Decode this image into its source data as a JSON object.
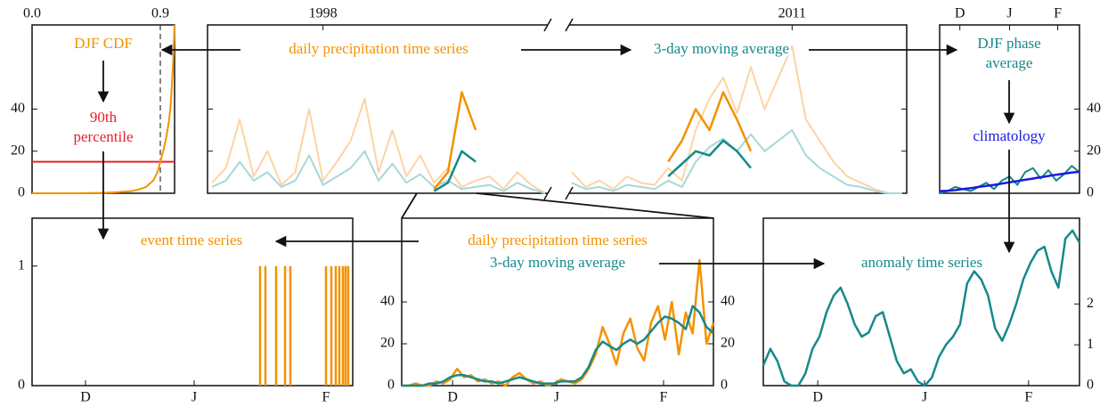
{
  "chart_data": [
    {
      "type": "line",
      "xaxis": "top",
      "yaxis": [
        "left"
      ],
      "xlim": [
        0,
        1
      ],
      "xticks": [
        {
          "value": 0,
          "label": "0.0"
        },
        0.9
      ],
      "ylim": [
        0,
        80
      ],
      "yticks": [
        0,
        20,
        40
      ],
      "x": [
        0,
        0.3,
        0.5,
        0.6,
        0.7,
        0.75,
        0.8,
        0.85,
        0.88,
        0.9,
        0.92,
        0.94,
        0.96,
        0.97,
        0.98,
        0.99,
        1.0
      ],
      "series": [
        {
          "color": "#f39200",
          "width": 2,
          "values": [
            0,
            0,
            0.2,
            0.5,
            1,
            1.8,
            3,
            6,
            10,
            15,
            20,
            26,
            34,
            40,
            50,
            62,
            80
          ]
        }
      ],
      "threshold": {
        "value": 15,
        "color": "#e8202a"
      },
      "reference_x": 0.9,
      "annotations": [
        {
          "lines": [
            "DJF CDF"
          ],
          "color": "#f39200"
        },
        {
          "lines": [
            "90th",
            "percentile"
          ],
          "color": "#e8202a"
        }
      ]
    },
    {
      "type": "line",
      "xaxis": "top",
      "yaxis": [
        "left",
        "right"
      ],
      "ytick_labels": false,
      "xlim": [
        0,
        98
      ],
      "axis_break": [
        48,
        50
      ],
      "xticks": [
        {
          "value": 16,
          "label": "1998"
        },
        {
          "value": 82,
          "label": "2011"
        }
      ],
      "ylim": [
        0,
        80
      ],
      "yticks": [
        0,
        20,
        40
      ],
      "x": [
        0,
        2,
        4,
        6,
        8,
        10,
        12,
        14,
        16,
        18,
        20,
        22,
        24,
        26,
        28,
        30,
        32,
        34,
        36,
        38,
        40,
        42,
        44,
        46,
        48,
        50,
        52,
        54,
        56,
        58,
        60,
        62,
        64,
        66,
        68,
        70,
        72,
        74,
        76,
        78,
        80,
        82,
        84,
        86,
        88,
        90,
        92,
        94,
        96,
        98
      ],
      "series": [
        {
          "color": "#fdd3a5",
          "width": 2,
          "values": [
            5,
            12,
            35,
            8,
            20,
            4,
            10,
            40,
            6,
            15,
            25,
            45,
            10,
            30,
            8,
            18,
            5,
            12,
            3,
            6,
            8,
            2,
            10,
            4,
            0,
            10,
            3,
            6,
            2,
            8,
            5,
            4,
            12,
            6,
            30,
            45,
            55,
            38,
            60,
            40,
            55,
            70,
            35,
            25,
            15,
            8,
            5,
            2,
            0,
            0
          ]
        },
        {
          "color": "#a6d8d8",
          "width": 2,
          "values": [
            3,
            6,
            15,
            6,
            10,
            3,
            6,
            18,
            4,
            8,
            12,
            20,
            6,
            14,
            5,
            9,
            3,
            6,
            2,
            3,
            4,
            1,
            5,
            2,
            0,
            5,
            2,
            3,
            1,
            4,
            3,
            2,
            6,
            3,
            15,
            22,
            26,
            20,
            28,
            20,
            25,
            30,
            18,
            12,
            8,
            4,
            3,
            1,
            0,
            0
          ]
        },
        {
          "color": "#f39200",
          "width": 2.5,
          "values": [
            null,
            null,
            null,
            null,
            null,
            null,
            null,
            null,
            null,
            null,
            null,
            null,
            null,
            null,
            null,
            null,
            2,
            10,
            48,
            30,
            null,
            null,
            null,
            null,
            null,
            null,
            null,
            null,
            null,
            null,
            null,
            null,
            15,
            25,
            40,
            30,
            48,
            35,
            20,
            null,
            null,
            null,
            null,
            null,
            null,
            null,
            null,
            null,
            null,
            null
          ]
        },
        {
          "color": "#16898a",
          "width": 2.5,
          "values": [
            null,
            null,
            null,
            null,
            null,
            null,
            null,
            null,
            null,
            null,
            null,
            null,
            null,
            null,
            null,
            null,
            1,
            5,
            20,
            15,
            null,
            null,
            null,
            null,
            null,
            null,
            null,
            null,
            null,
            null,
            null,
            null,
            8,
            14,
            20,
            18,
            25,
            20,
            12,
            null,
            null,
            null,
            null,
            null,
            null,
            null,
            null,
            null,
            null,
            null
          ]
        }
      ],
      "annotations": [
        {
          "lines": [
            "daily precipitation time series"
          ],
          "color": "#f39200"
        },
        {
          "lines": [
            "3-day moving average"
          ],
          "color": "#16898a"
        }
      ]
    },
    {
      "type": "line",
      "xaxis": "top",
      "yaxis": [
        "right"
      ],
      "xlim": [
        0,
        90
      ],
      "xticks": [
        {
          "value": 13,
          "label": "D"
        },
        {
          "value": 45,
          "label": "J"
        },
        {
          "value": 76,
          "label": "F"
        }
      ],
      "ylim": [
        0,
        80
      ],
      "yticks": [
        0,
        20,
        40
      ],
      "x": [
        0,
        5,
        10,
        15,
        20,
        25,
        30,
        35,
        40,
        45,
        50,
        55,
        60,
        65,
        70,
        75,
        80,
        85,
        90
      ],
      "series": [
        {
          "color": "#16898a",
          "width": 2,
          "values": [
            0,
            1,
            3,
            2,
            1,
            3,
            5,
            2,
            6,
            8,
            4,
            10,
            12,
            7,
            11,
            6,
            9,
            13,
            10
          ]
        },
        {
          "color": "#1a1ae0",
          "width": 2.5,
          "values": [
            1,
            1.2,
            1.5,
            2,
            2.4,
            3,
            3.5,
            4,
            4.6,
            5.2,
            5.8,
            6.4,
            7,
            7.6,
            8.2,
            8.8,
            9.3,
            9.8,
            10.2
          ]
        }
      ],
      "annotations": [
        {
          "lines": [
            "DJF phase",
            "average"
          ],
          "color": "#16898a"
        },
        {
          "lines": [
            "climatology"
          ],
          "color": "#1a1ae0"
        }
      ]
    },
    {
      "type": "bar",
      "xaxis": "bottom",
      "yaxis": [
        "left"
      ],
      "xlim": [
        0,
        90
      ],
      "xticks": [
        {
          "value": 15,
          "label": "D"
        },
        {
          "value": 45.5,
          "label": "J"
        },
        {
          "value": 82.5,
          "label": "F"
        }
      ],
      "ylim": [
        0,
        1.4
      ],
      "yticks": [
        0,
        1
      ],
      "x": [
        64,
        65.5,
        68.5,
        71,
        72.5,
        82.5,
        84,
        85.25,
        86.25,
        87.25,
        88,
        88.75
      ],
      "series": [
        {
          "color": "#f39200",
          "width": 2.5,
          "values": [
            1,
            1,
            1,
            1,
            1,
            1,
            1,
            1,
            1,
            1,
            1,
            1
          ]
        }
      ],
      "annotations": [
        {
          "lines": [
            "event time series"
          ],
          "color": "#f39200"
        }
      ]
    },
    {
      "type": "line",
      "xaxis": "bottom",
      "yaxis": [
        "left",
        "right"
      ],
      "xlim": [
        0,
        90
      ],
      "xticks": [
        {
          "value": 14.7,
          "label": "D"
        },
        {
          "value": 44.7,
          "label": "J"
        },
        {
          "value": 75.6,
          "label": "F"
        }
      ],
      "ylim": [
        0,
        80
      ],
      "yticks": [
        0,
        20,
        40
      ],
      "x": [
        0,
        2,
        4,
        6,
        8,
        10,
        12,
        14,
        16,
        18,
        20,
        22,
        24,
        26,
        28,
        30,
        32,
        34,
        36,
        38,
        40,
        42,
        44,
        46,
        48,
        50,
        52,
        54,
        56,
        58,
        60,
        62,
        64,
        66,
        68,
        70,
        72,
        74,
        76,
        78,
        80,
        82,
        84,
        86,
        88,
        90
      ],
      "series": [
        {
          "color": "#f39200",
          "width": 2.5,
          "values": [
            0,
            0,
            1,
            0,
            0,
            2,
            1,
            3,
            8,
            4,
            5,
            2,
            3,
            1,
            2,
            0,
            4,
            6,
            3,
            1,
            2,
            0,
            1,
            3,
            2,
            1,
            3,
            8,
            15,
            28,
            20,
            10,
            25,
            32,
            18,
            12,
            30,
            38,
            22,
            40,
            15,
            35,
            25,
            60,
            20,
            30
          ]
        },
        {
          "color": "#16898a",
          "width": 2.5,
          "values": [
            0,
            0,
            0,
            0,
            1,
            1,
            2,
            4,
            5,
            5,
            4,
            3,
            2,
            2,
            1,
            2,
            3,
            4,
            3,
            2,
            1,
            1,
            1,
            2,
            2,
            2,
            4,
            9,
            17,
            21,
            19,
            17,
            20,
            22,
            20,
            22,
            26,
            30,
            33,
            32,
            30,
            27,
            38,
            35,
            28,
            25
          ]
        }
      ],
      "annotations": [
        {
          "lines": [
            "daily precipitation time series"
          ],
          "color": "#f39200"
        },
        {
          "lines": [
            "3-day moving average"
          ],
          "color": "#16898a"
        }
      ]
    },
    {
      "type": "line",
      "xaxis": "bottom",
      "yaxis": [
        "right"
      ],
      "xlim": [
        0,
        90
      ],
      "xticks": [
        {
          "value": 15.5,
          "label": "D"
        },
        {
          "value": 45.9,
          "label": "J"
        },
        {
          "value": 75.5,
          "label": "F"
        }
      ],
      "ylim": [
        0,
        4.1
      ],
      "yticks": [
        0,
        1,
        2
      ],
      "x": [
        0,
        2,
        4,
        6,
        8,
        10,
        12,
        14,
        16,
        18,
        20,
        22,
        24,
        26,
        28,
        30,
        32,
        34,
        36,
        38,
        40,
        42,
        44,
        46,
        48,
        50,
        52,
        54,
        56,
        58,
        60,
        62,
        64,
        66,
        68,
        70,
        72,
        74,
        76,
        78,
        80,
        82,
        84,
        86,
        88,
        90
      ],
      "series": [
        {
          "color": "#16898a",
          "width": 2.5,
          "values": [
            0.5,
            0.9,
            0.6,
            0.1,
            0,
            0,
            0.3,
            0.9,
            1.2,
            1.8,
            2.2,
            2.4,
            2.0,
            1.5,
            1.2,
            1.3,
            1.7,
            1.8,
            1.2,
            0.6,
            0.3,
            0.4,
            0.1,
            0,
            0.2,
            0.7,
            1.0,
            1.2,
            1.5,
            2.5,
            2.8,
            2.6,
            2.2,
            1.4,
            1.1,
            1.5,
            2.0,
            2.6,
            3.0,
            3.3,
            3.4,
            2.8,
            2.4,
            3.6,
            3.8,
            3.5
          ]
        }
      ],
      "annotations": [
        {
          "lines": [
            "anomaly time series"
          ],
          "color": "#16898a"
        }
      ]
    }
  ]
}
